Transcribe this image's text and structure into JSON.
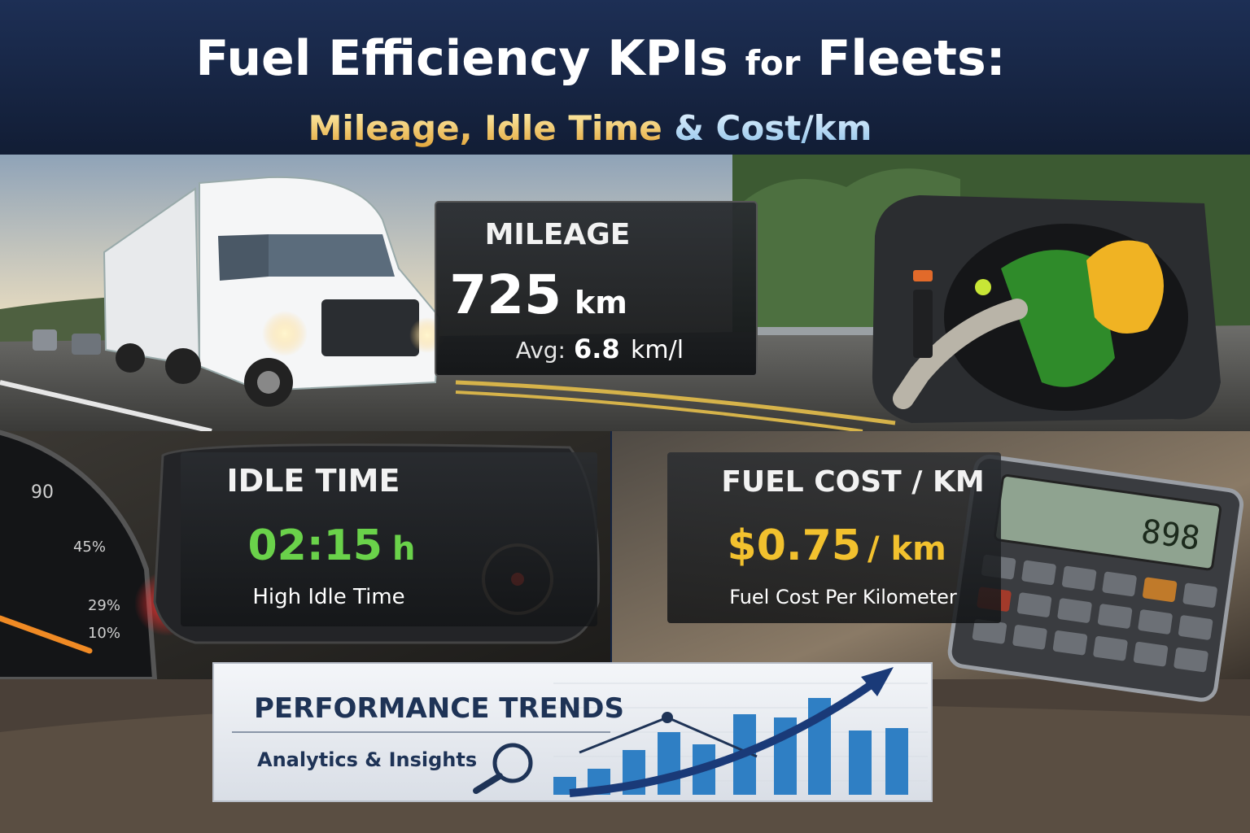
{
  "header": {
    "title_main": "Fuel Efficiency KPIs",
    "title_for": "for",
    "title_end": "Fleets:",
    "subtitle_a": "Mileage, Idle Time",
    "subtitle_b": "& Cost/km"
  },
  "mileage": {
    "label": "MILEAGE",
    "value": 725,
    "unit": "km",
    "avg_label": "Avg:",
    "avg_value": 6.8,
    "avg_unit": "km/l"
  },
  "idle": {
    "label": "IDLE TIME",
    "value": "02:15",
    "unit": "h",
    "note": "High Idle Time"
  },
  "cost": {
    "label": "FUEL COST / KM",
    "value": "$0.75",
    "unit": "/ km",
    "note": "Fuel Cost Per Kilometer"
  },
  "trends": {
    "title": "PERFORMANCE TRENDS",
    "subtitle": "Analytics & Insights"
  },
  "gauge": {
    "labels": [
      "90",
      "45%",
      "29%",
      "10%"
    ]
  },
  "calculator": {
    "display": "898"
  }
}
